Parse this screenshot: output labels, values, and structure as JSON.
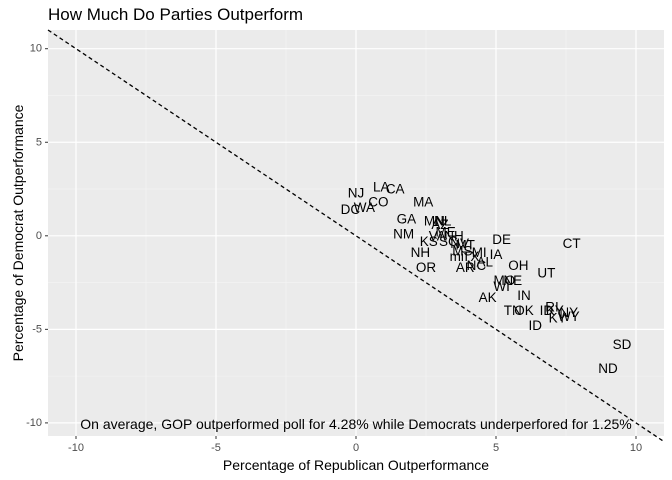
{
  "chart_data": {
    "type": "scatter",
    "title": "How Much Do Parties Outperform",
    "xlabel": "Percentage of Republican Outperformance",
    "ylabel": "Percentage of Democrat Outperformance",
    "xlim": [
      -11,
      11
    ],
    "ylim": [
      -10.7,
      11.0
    ],
    "x_ticks": [
      -10,
      -5,
      0,
      5,
      10
    ],
    "y_ticks": [
      -10,
      -5,
      0,
      5,
      10
    ],
    "grid": true,
    "reference_line": {
      "slope": -1,
      "intercept": 0,
      "style": "dashed"
    },
    "annotation": {
      "text": "On average, GOP outperformed poll for 4.28% while Democrats underperfored for 1.25%",
      "x": 0,
      "y": -10
    },
    "points": [
      {
        "label": "LA",
        "x": 0.9,
        "y": 2.6
      },
      {
        "label": "CA",
        "x": 1.4,
        "y": 2.5
      },
      {
        "label": "NJ",
        "x": 0.0,
        "y": 2.3
      },
      {
        "label": "CO",
        "x": 0.8,
        "y": 1.8
      },
      {
        "label": "MA",
        "x": 2.4,
        "y": 1.8
      },
      {
        "label": "DC",
        "x": -0.2,
        "y": 1.4
      },
      {
        "label": "WA",
        "x": 0.3,
        "y": 1.5
      },
      {
        "label": "GA",
        "x": 1.8,
        "y": 0.9
      },
      {
        "label": "MN",
        "x": 2.8,
        "y": 0.8
      },
      {
        "label": "NL",
        "x": 3.1,
        "y": 0.8
      },
      {
        "label": "AZ",
        "x": 3.0,
        "y": 0.6
      },
      {
        "label": "NM",
        "x": 1.7,
        "y": 0.1
      },
      {
        "label": "ME",
        "x": 3.2,
        "y": 0.2
      },
      {
        "label": "NH",
        "x": 3.5,
        "y": 0.0
      },
      {
        "label": "VA",
        "x": 2.9,
        "y": 0.0
      },
      {
        "label": "KS",
        "x": 2.6,
        "y": -0.3
      },
      {
        "label": "DE",
        "x": 5.2,
        "y": -0.2
      },
      {
        "label": "CT",
        "x": 7.7,
        "y": -0.4
      },
      {
        "label": "NV",
        "x": 3.7,
        "y": -0.4
      },
      {
        "label": "SC",
        "x": 3.3,
        "y": -0.3
      },
      {
        "label": "MT",
        "x": 3.9,
        "y": -0.5
      },
      {
        "label": "NH",
        "x": 2.3,
        "y": -0.9
      },
      {
        "label": "MS",
        "x": 3.8,
        "y": -0.8
      },
      {
        "label": "MI",
        "x": 4.4,
        "y": -0.9
      },
      {
        "label": "IA",
        "x": 5.0,
        "y": -1.0
      },
      {
        "label": "mi",
        "x": 3.6,
        "y": -1.1
      },
      {
        "label": "TX",
        "x": 4.1,
        "y": -1.1
      },
      {
        "label": "AL",
        "x": 4.6,
        "y": -1.4
      },
      {
        "label": "OR",
        "x": 2.5,
        "y": -1.7
      },
      {
        "label": "AR",
        "x": 3.9,
        "y": -1.7
      },
      {
        "label": "NC",
        "x": 4.3,
        "y": -1.6
      },
      {
        "label": "OH",
        "x": 5.8,
        "y": -1.6
      },
      {
        "label": "UT",
        "x": 6.8,
        "y": -2.0
      },
      {
        "label": "MO",
        "x": 5.3,
        "y": -2.4
      },
      {
        "label": "NE",
        "x": 5.6,
        "y": -2.4
      },
      {
        "label": "WI",
        "x": 5.2,
        "y": -2.7
      },
      {
        "label": "IN",
        "x": 6.0,
        "y": -3.2
      },
      {
        "label": "AK",
        "x": 4.7,
        "y": -3.3
      },
      {
        "label": "RI",
        "x": 7.0,
        "y": -3.8
      },
      {
        "label": "TN",
        "x": 5.6,
        "y": -4.0
      },
      {
        "label": "OK",
        "x": 6.0,
        "y": -4.0
      },
      {
        "label": "ID",
        "x": 6.8,
        "y": -4.0
      },
      {
        "label": "KY",
        "x": 7.1,
        "y": -4.0
      },
      {
        "label": "NY",
        "x": 7.6,
        "y": -4.1
      },
      {
        "label": "WY",
        "x": 7.6,
        "y": -4.3
      },
      {
        "label": "KY",
        "x": 7.2,
        "y": -4.4
      },
      {
        "label": "ID",
        "x": 6.4,
        "y": -4.8
      },
      {
        "label": "SD",
        "x": 9.5,
        "y": -5.8
      },
      {
        "label": "ND",
        "x": 9.0,
        "y": -7.1
      }
    ]
  }
}
